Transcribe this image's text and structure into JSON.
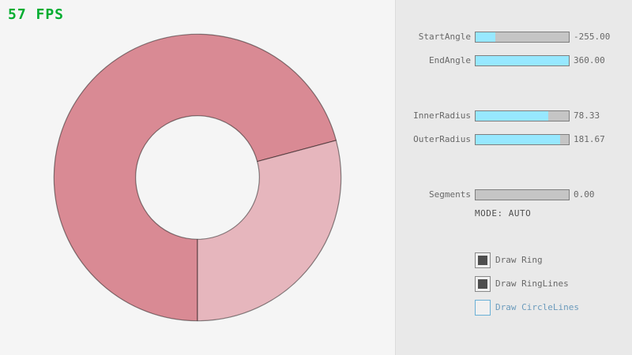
{
  "window": {
    "fps_label": "57 FPS"
  },
  "colors": {
    "canvas_bg": "#f5f5f5",
    "panel_bg": "#e9e9e9",
    "divider": "#dcdcdc",
    "fps": "#00ad30",
    "text": "#686868",
    "mode_text": "#4f4f4f",
    "slider_fill": "#97e8ff",
    "slider_track": "#c5c5c5",
    "slider_border": "#7e7e7e",
    "checkbox_border": "#898989",
    "checkbox_bg": "#f0f0f0",
    "checkbox_check": "#4e4e4e",
    "focus_accent": "#6ab0d6",
    "focus_text": "#6c9bbc",
    "ring_dark": "#d98a94",
    "ring_light": "#e6b6bd",
    "ring_outline": "rgba(0,0,0,0.45)"
  },
  "panel": {
    "sliders": [
      {
        "label": "StartAngle",
        "value": "-255.00",
        "fill_pct": 21
      },
      {
        "label": "EndAngle",
        "value": "360.00",
        "fill_pct": 100
      },
      {
        "label": "InnerRadius",
        "value": "78.33",
        "fill_pct": 78
      },
      {
        "label": "OuterRadius",
        "value": "181.67",
        "fill_pct": 91
      },
      {
        "label": "Segments",
        "value": "0.00",
        "fill_pct": 0
      }
    ],
    "mode_text": "MODE: AUTO",
    "checkboxes": [
      {
        "label": "Draw Ring",
        "checked": true,
        "focused": false
      },
      {
        "label": "Draw RingLines",
        "checked": true,
        "focused": false
      },
      {
        "label": "Draw CircleLines",
        "checked": false,
        "focused": true
      }
    ]
  }
}
